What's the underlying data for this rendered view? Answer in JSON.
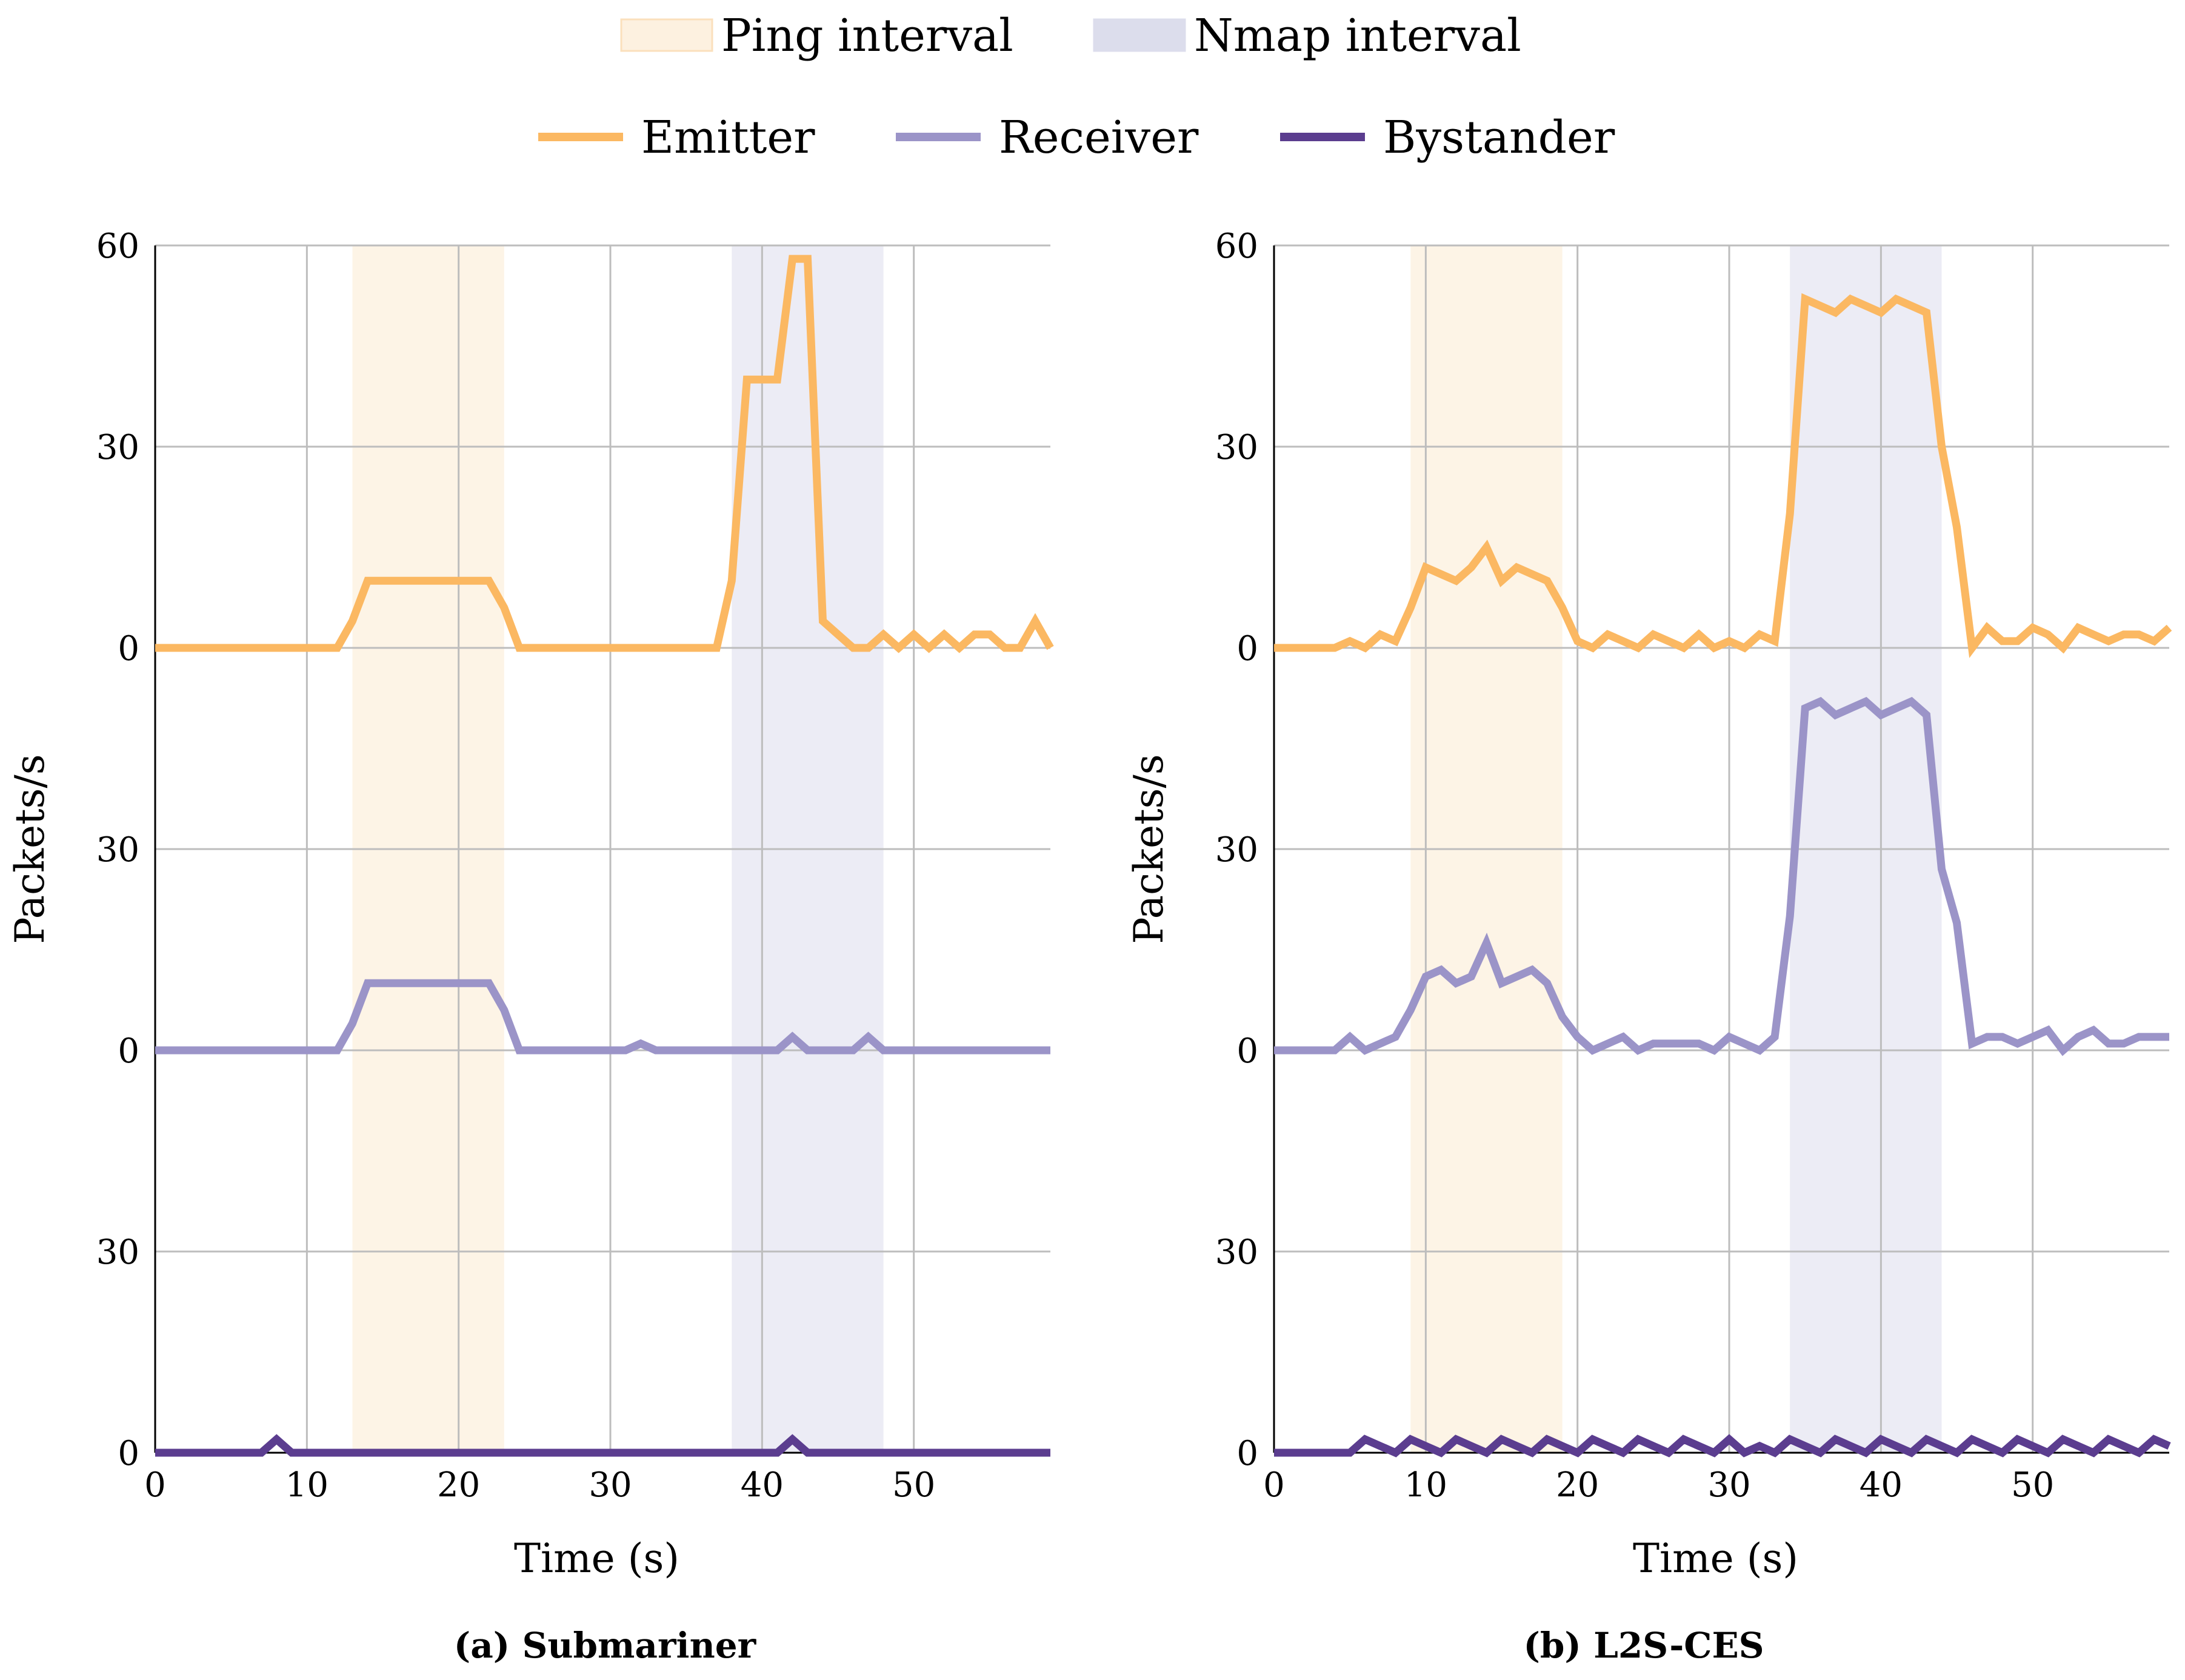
{
  "legend": {
    "intervals": [
      {
        "label": "Ping interval",
        "color": "#fdf1e0",
        "border": "#fbe0bc"
      },
      {
        "label": "Nmap interval",
        "color": "#dcddec",
        "border": "#dcddec"
      }
    ],
    "series": [
      {
        "label": "Emitter",
        "color": "#fbb862"
      },
      {
        "label": "Receiver",
        "color": "#9b94c8"
      },
      {
        "label": "Bystander",
        "color": "#5b3d8f"
      }
    ]
  },
  "chart_data": [
    {
      "type": "line",
      "caption": "(a) Submariner",
      "xlabel": "Time (s)",
      "ylabel": "Packets/s",
      "xlim": [
        0,
        59
      ],
      "xticks": [
        0,
        10,
        20,
        30,
        40,
        50
      ],
      "panel_ylim": [
        0,
        60
      ],
      "yticks": [
        0,
        30,
        60
      ],
      "intervals": [
        {
          "name": "Ping interval",
          "start": 13,
          "end": 23
        },
        {
          "name": "Nmap interval",
          "start": 38,
          "end": 48
        }
      ],
      "series": [
        {
          "name": "Emitter",
          "x": [
            0,
            12,
            13,
            14,
            22,
            23,
            24,
            37,
            38,
            39,
            41,
            42,
            43,
            44,
            45,
            46,
            47,
            48,
            49,
            50,
            51,
            52,
            53,
            54,
            55,
            56,
            57,
            58,
            59
          ],
          "y": [
            0,
            0,
            4,
            10,
            10,
            6,
            0,
            0,
            10,
            40,
            40,
            58,
            58,
            4,
            2,
            0,
            0,
            2,
            0,
            2,
            0,
            2,
            0,
            2,
            2,
            0,
            0,
            4,
            0
          ]
        },
        {
          "name": "Receiver",
          "x": [
            0,
            12,
            13,
            14,
            22,
            23,
            24,
            31,
            32,
            33,
            41,
            42,
            43,
            46,
            47,
            48,
            59
          ],
          "y": [
            0,
            0,
            4,
            10,
            10,
            6,
            0,
            0,
            1,
            0,
            0,
            2,
            0,
            0,
            2,
            0,
            0
          ]
        },
        {
          "name": "Bystander",
          "x": [
            0,
            7,
            8,
            9,
            41,
            42,
            43,
            59
          ],
          "y": [
            0,
            0,
            2,
            0,
            0,
            2,
            0,
            0
          ]
        }
      ]
    },
    {
      "type": "line",
      "caption": "(b) L2S-CES",
      "xlabel": "Time (s)",
      "ylabel": "Packets/s",
      "xlim": [
        0,
        59
      ],
      "xticks": [
        0,
        10,
        20,
        30,
        40,
        50
      ],
      "panel_ylim": [
        0,
        60
      ],
      "yticks": [
        0,
        30,
        60
      ],
      "intervals": [
        {
          "name": "Ping interval",
          "start": 9,
          "end": 19
        },
        {
          "name": "Nmap interval",
          "start": 34,
          "end": 44
        }
      ],
      "series": [
        {
          "name": "Emitter",
          "x": [
            0,
            1,
            2,
            3,
            4,
            5,
            6,
            7,
            8,
            9,
            10,
            11,
            12,
            13,
            14,
            15,
            16,
            17,
            18,
            19,
            20,
            21,
            22,
            23,
            24,
            25,
            26,
            27,
            28,
            29,
            30,
            31,
            32,
            33,
            34,
            35,
            36,
            37,
            38,
            39,
            40,
            41,
            42,
            43,
            44,
            45,
            46,
            47,
            48,
            49,
            50,
            51,
            52,
            53,
            54,
            55,
            56,
            57,
            58,
            59
          ],
          "y": [
            0,
            0,
            0,
            0,
            0,
            1,
            0,
            2,
            1,
            6,
            12,
            11,
            10,
            12,
            15,
            10,
            12,
            11,
            10,
            6,
            1,
            0,
            2,
            1,
            0,
            2,
            1,
            0,
            2,
            0,
            1,
            0,
            2,
            1,
            20,
            52,
            51,
            50,
            52,
            51,
            50,
            52,
            51,
            50,
            30,
            18,
            0,
            3,
            1,
            1,
            3,
            2,
            0,
            3,
            2,
            1,
            2,
            2,
            1,
            3
          ]
        },
        {
          "name": "Receiver",
          "x": [
            0,
            1,
            2,
            3,
            4,
            5,
            6,
            7,
            8,
            9,
            10,
            11,
            12,
            13,
            14,
            15,
            16,
            17,
            18,
            19,
            20,
            21,
            22,
            23,
            24,
            25,
            26,
            27,
            28,
            29,
            30,
            31,
            32,
            33,
            34,
            35,
            36,
            37,
            38,
            39,
            40,
            41,
            42,
            43,
            44,
            45,
            46,
            47,
            48,
            49,
            50,
            51,
            52,
            53,
            54,
            55,
            56,
            57,
            58,
            59
          ],
          "y": [
            0,
            0,
            0,
            0,
            0,
            2,
            0,
            1,
            2,
            6,
            11,
            12,
            10,
            11,
            16,
            10,
            11,
            12,
            10,
            5,
            2,
            0,
            1,
            2,
            0,
            1,
            1,
            1,
            1,
            0,
            2,
            1,
            0,
            2,
            20,
            51,
            52,
            50,
            51,
            52,
            50,
            51,
            52,
            50,
            27,
            19,
            1,
            2,
            2,
            1,
            2,
            3,
            0,
            2,
            3,
            1,
            1,
            2,
            2,
            2
          ]
        },
        {
          "name": "Bystander",
          "x": [
            0,
            1,
            2,
            3,
            4,
            5,
            6,
            7,
            8,
            9,
            10,
            11,
            12,
            13,
            14,
            15,
            16,
            17,
            18,
            19,
            20,
            21,
            22,
            23,
            24,
            25,
            26,
            27,
            28,
            29,
            30,
            31,
            32,
            33,
            34,
            35,
            36,
            37,
            38,
            39,
            40,
            41,
            42,
            43,
            44,
            45,
            46,
            47,
            48,
            49,
            50,
            51,
            52,
            53,
            54,
            55,
            56,
            57,
            58,
            59
          ],
          "y": [
            0,
            0,
            0,
            0,
            0,
            0,
            2,
            1,
            0,
            2,
            1,
            0,
            2,
            1,
            0,
            2,
            1,
            0,
            2,
            1,
            0,
            2,
            1,
            0,
            2,
            1,
            0,
            2,
            1,
            0,
            2,
            0,
            1,
            0,
            2,
            1,
            0,
            2,
            1,
            0,
            2,
            1,
            0,
            2,
            1,
            0,
            2,
            1,
            0,
            2,
            1,
            0,
            2,
            1,
            0,
            2,
            1,
            0,
            2,
            1
          ]
        }
      ]
    }
  ]
}
